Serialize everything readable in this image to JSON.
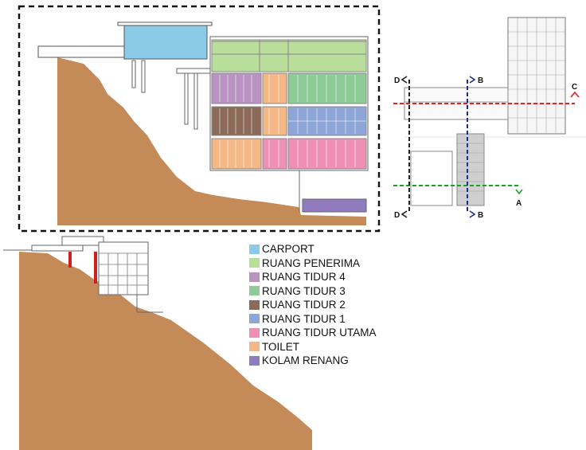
{
  "legend": [
    {
      "label": "CARPORT",
      "color": "#8ccbe8"
    },
    {
      "label": "RUANG PENERIMA",
      "color": "#b9dd9a"
    },
    {
      "label": "RUANG TIDUR 4",
      "color": "#b994c2"
    },
    {
      "label": "RUANG TIDUR 3",
      "color": "#8dcc97"
    },
    {
      "label": "RUANG TIDUR 2",
      "color": "#8b6a5a"
    },
    {
      "label": "RUANG TIDUR 1",
      "color": "#8ea5d8"
    },
    {
      "label": "RUANG TIDUR UTAMA",
      "color": "#ee8fb6"
    },
    {
      "label": "TOILET",
      "color": "#f3b886"
    },
    {
      "label": "KOLAM RENANG",
      "color": "#8f7bbd"
    }
  ],
  "section_markers": {
    "d_top": "D",
    "b_top": "B",
    "c_right": "C",
    "a_right": "A",
    "d_bottom": "D",
    "b_bottom": "B"
  },
  "colors": {
    "ground": "#c48a58",
    "frame_line": "#666666",
    "section_a": "#1aa12a",
    "section_b": "#1f2a8a",
    "section_c": "#e22222",
    "section_d": "#222222",
    "column_red": "#d02020"
  }
}
